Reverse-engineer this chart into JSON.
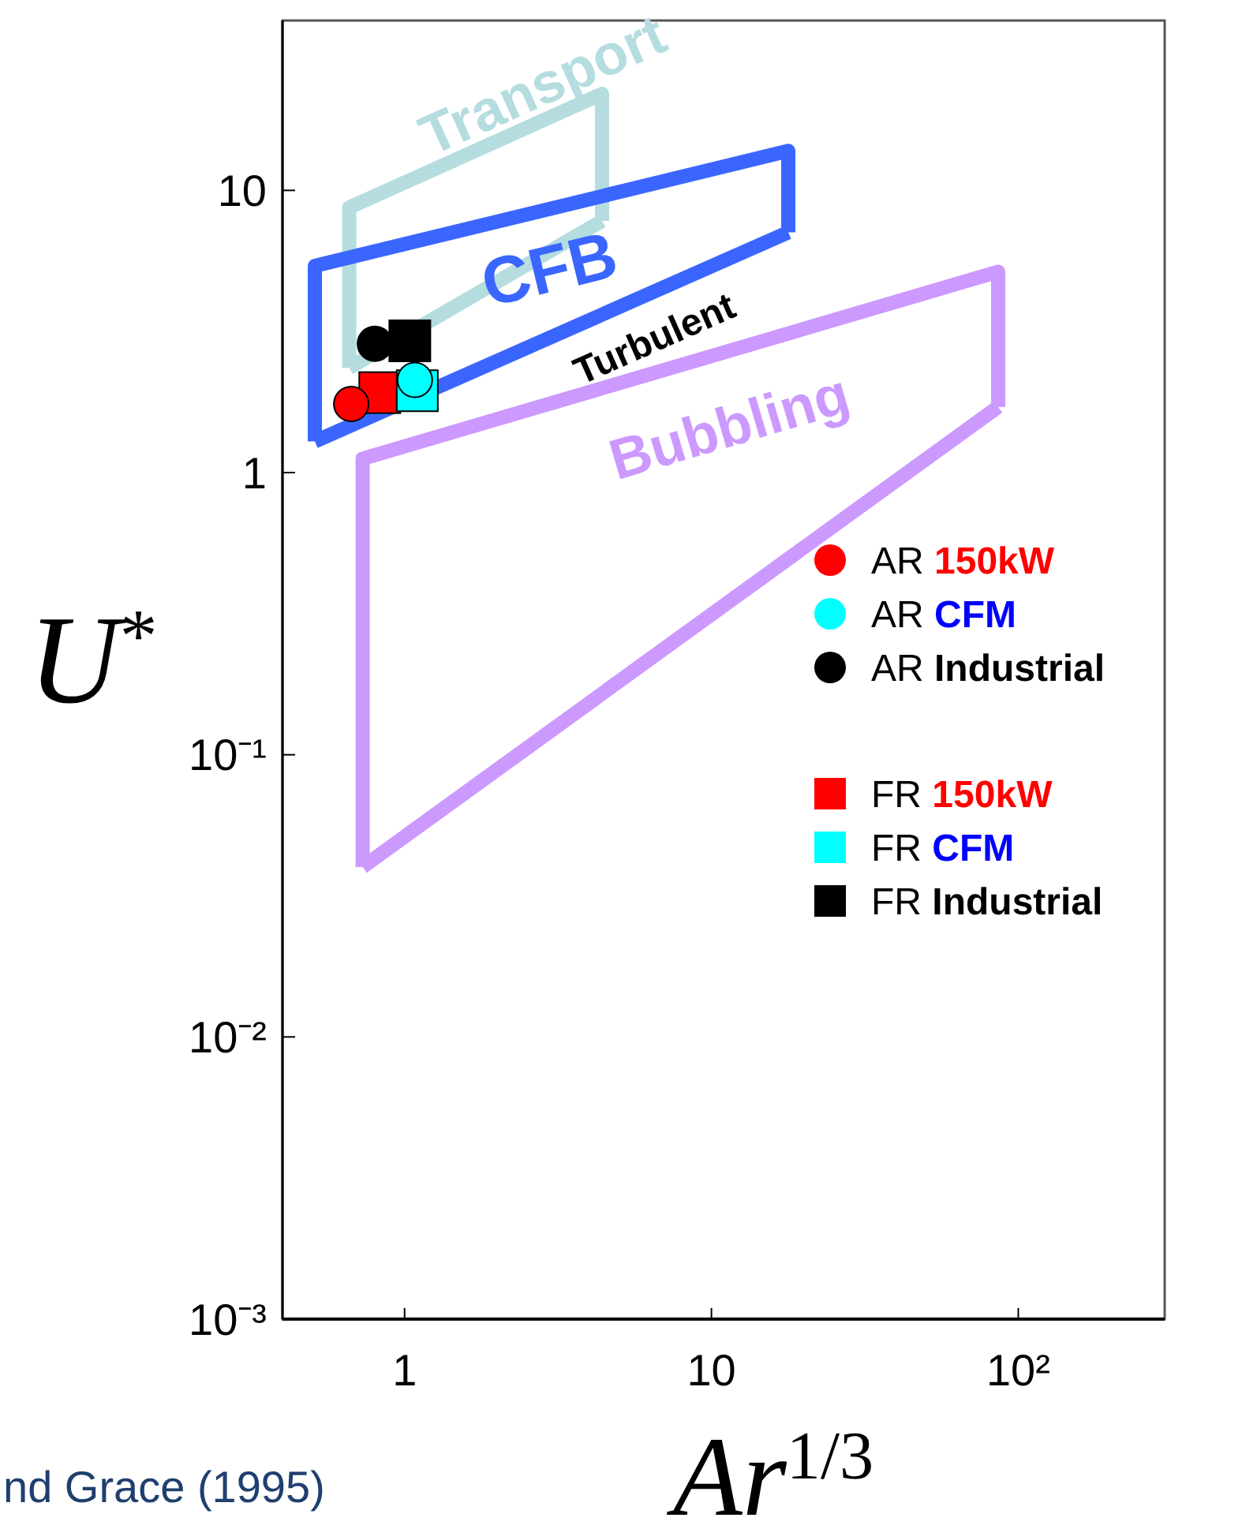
{
  "chart_data": {
    "type": "scatter",
    "xlabel": "Ar$^{1/3}$",
    "ylabel": "U$^{*}$",
    "log": "xy",
    "xlim": [
      0.4,
      300
    ],
    "ylim": [
      0.001,
      40
    ],
    "xticks": [
      1,
      10,
      {
        "value": 100,
        "label": "10²"
      }
    ],
    "yticks": [
      {
        "value": 0.001,
        "label": "10⁻³"
      },
      {
        "value": 0.01,
        "label": "10⁻²"
      },
      {
        "value": 0.1,
        "label": "10⁻¹"
      },
      1,
      10
    ],
    "grid": false,
    "legend": "right",
    "series": [
      {
        "name": "Transport",
        "type": "line",
        "color": "#b5dde0",
        "x": [
          0.66,
          0.66,
          4.4,
          4.4
        ],
        "values": [
          2.35,
          8.7,
          22,
          7.8
        ]
      },
      {
        "type": "line",
        "color": "#b5dde0",
        "x": [
          0.66,
          4.4
        ],
        "values": [
          2.35,
          7.8
        ]
      },
      {
        "name": "CFB",
        "type": "line",
        "color": "#3a66ff",
        "x": [
          0.51,
          0.51,
          17.8,
          17.8
        ],
        "values": [
          1.29,
          5.4,
          13.8,
          7.1
        ]
      },
      {
        "type": "line",
        "color": "#3a66ff",
        "x": [
          0.51,
          17.8
        ],
        "values": [
          1.29,
          7.1
        ]
      },
      {
        "name": "Bubbling",
        "type": "line",
        "color": "#cc99ff",
        "x": [
          0.73,
          0.73,
          86,
          86
        ],
        "values": [
          0.04,
          1.12,
          5.15,
          1.71
        ]
      },
      {
        "type": "line",
        "color": "#cc99ff",
        "x": [
          0.73,
          86
        ],
        "values": [
          0.04,
          1.71
        ]
      },
      {
        "name": "AR 150kW",
        "color": "#ff0000",
        "marker": "circle",
        "x": [
          0.67
        ],
        "values": [
          1.75
        ]
      },
      {
        "name": "AR CFM",
        "color": "#00ffff",
        "marker": "circle",
        "x": [
          1.08
        ],
        "values": [
          2.13
        ]
      },
      {
        "name": "AR Industrial",
        "color": "#000000",
        "marker": "circle",
        "x": [
          0.8
        ],
        "values": [
          2.86
        ]
      },
      {
        "name": "FR 150kW",
        "color": "#ff0000",
        "marker": "square",
        "x": [
          0.83
        ],
        "values": [
          1.92
        ]
      },
      {
        "name": "FR CFM",
        "color": "#00ffff",
        "marker": "square",
        "x": [
          1.1
        ],
        "values": [
          1.95
        ]
      },
      {
        "name": "FR Industrial",
        "color": "#000000",
        "marker": "square",
        "x": [
          1.04
        ],
        "values": [
          2.93
        ]
      }
    ],
    "annotations": [
      "Turbulent",
      "nd Grace (1995)"
    ]
  }
}
